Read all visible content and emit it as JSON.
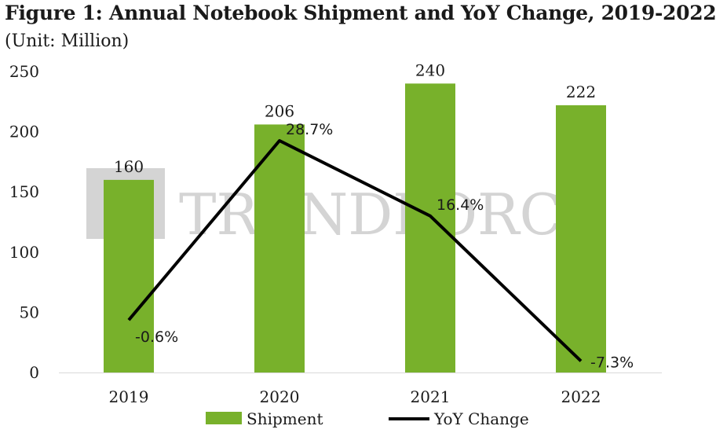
{
  "title": "Figure 1: Annual Notebook Shipment and YoY Change, 2019-2022",
  "subtitle": "(Unit: Million)",
  "watermark": "TRENDFORCE",
  "colors": {
    "bar": "#78b12b",
    "line": "#000000",
    "watermark": "#d4d4d4"
  },
  "chart_data": {
    "type": "bar",
    "categories": [
      "2019",
      "2020",
      "2021",
      "2022"
    ],
    "ylim": [
      0,
      250
    ],
    "yticks": [
      "0",
      "50",
      "100",
      "150",
      "200",
      "250"
    ],
    "grid": false,
    "legend_position": "bottom",
    "series": [
      {
        "name": "Shipment",
        "type": "bar",
        "values": [
          160,
          206,
          240,
          222
        ],
        "labels": [
          "160",
          "206",
          "240",
          "222"
        ]
      },
      {
        "name": "YoY Change",
        "type": "line",
        "values": [
          -0.6,
          28.7,
          16.4,
          -7.3
        ],
        "labels": [
          "-0.6%",
          "28.7%",
          "16.4%",
          "-7.3%"
        ]
      }
    ]
  }
}
